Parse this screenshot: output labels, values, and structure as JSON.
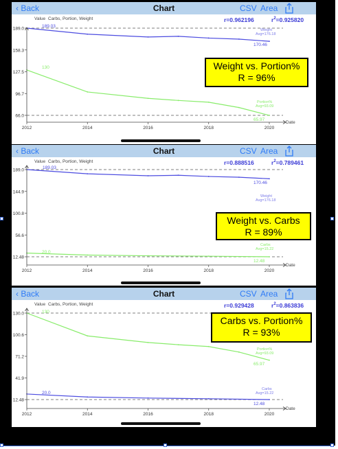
{
  "colors": {
    "weight_line": "#4b4be0",
    "green_line": "#88ec6a",
    "nav_bg": "#b7d2ec",
    "nav_link": "#2f7bf6",
    "stats_text": "#3b3bd6",
    "callout_bg": "#ffff00"
  },
  "icons": {
    "back": "chevron-left-icon",
    "share": "share-icon"
  },
  "panels": [
    {
      "nav": {
        "back_label": "Back",
        "title": "Chart",
        "csv_label": "CSV",
        "area_label": "Area"
      },
      "stats": {
        "r_text": "r=0.962196",
        "r2_prefix": "r",
        "r2_exp": "2",
        "r2_value": "=0.925820"
      },
      "value_label": "Value",
      "series_label": "Carbs, Portion, Weight",
      "date_label": "Date",
      "callout": {
        "line1": "Weight vs. Portion%",
        "line2": "R = 96%"
      },
      "annotations": {
        "top_start": "189.03",
        "top_end": "170.46",
        "top_name": "Weight",
        "top_avg": "Avg=176.18",
        "bottom_start": "130",
        "bottom_end": "65.97",
        "bottom_name": "Portion%",
        "bottom_avg": "Avg=93.09"
      }
    },
    {
      "nav": {
        "back_label": "Back",
        "title": "Chart",
        "csv_label": "CSV",
        "area_label": "Area"
      },
      "stats": {
        "r_text": "r=0.888516",
        "r2_prefix": "r",
        "r2_exp": "2",
        "r2_value": "=0.789461"
      },
      "value_label": "Value",
      "series_label": "Carbs, Portion, Weight",
      "date_label": "Date",
      "callout": {
        "line1": "Weight vs. Carbs",
        "line2": "R = 89%"
      },
      "annotations": {
        "top_start": "189.03",
        "top_end": "170.46",
        "top_name": "Weight",
        "top_avg": "Avg=176.18",
        "bottom_start": "20.0",
        "bottom_end": "12.48",
        "bottom_name": "Carbs",
        "bottom_avg": "Avg=15.22"
      }
    },
    {
      "nav": {
        "back_label": "Back",
        "title": "Chart",
        "csv_label": "CSV",
        "area_label": "Area"
      },
      "stats": {
        "r_text": "r=0.929428",
        "r2_prefix": "r",
        "r2_exp": "2",
        "r2_value": "=0.863836"
      },
      "value_label": "Value",
      "series_label": "Carbs, Portion, Weight",
      "date_label": "Date",
      "callout": {
        "line1": "Carbs vs. Portion%",
        "line2": "R = 93%"
      },
      "annotations": {
        "top_start": "130",
        "top_end": "65.97",
        "top_name": "Portion%",
        "top_avg": "Avg=93.09",
        "bottom_start": "20.0",
        "bottom_end": "12.48",
        "bottom_name": "Carbs",
        "bottom_avg": "Avg=15.22"
      }
    }
  ],
  "chart_data": [
    {
      "type": "line",
      "yticks": [
        "189.0",
        "158.3",
        "127.5",
        "96.7",
        "66.0"
      ],
      "xticks": [
        "2012",
        "2014",
        "2016",
        "2018",
        "2020"
      ],
      "ylim": [
        66.0,
        189.0
      ],
      "xlim": [
        2012,
        2020
      ],
      "hlines": [
        189.0,
        66.0
      ],
      "series": [
        {
          "name": "Weight",
          "color": "#4b4be0",
          "x": [
            2012,
            2014,
            2016,
            2017,
            2018,
            2019,
            2020
          ],
          "values": [
            189.03,
            180.5,
            176.5,
            177.5,
            175.0,
            173.5,
            170.46
          ]
        },
        {
          "name": "Portion%",
          "color": "#88ec6a",
          "x": [
            2012,
            2014,
            2016,
            2017,
            2018,
            2019,
            2020
          ],
          "values": [
            130,
            99,
            90,
            87,
            84.5,
            77,
            65.97
          ]
        }
      ]
    },
    {
      "type": "line",
      "yticks": [
        "189.0",
        "144.9",
        "100.8",
        "56.6",
        "12.48"
      ],
      "xticks": [
        "2012",
        "2014",
        "2016",
        "2018",
        "2020"
      ],
      "ylim": [
        12.48,
        189.0
      ],
      "xlim": [
        2012,
        2020
      ],
      "hlines": [
        189.0,
        12.48
      ],
      "series": [
        {
          "name": "Weight",
          "color": "#4b4be0",
          "x": [
            2012,
            2014,
            2016,
            2017,
            2018,
            2019,
            2020
          ],
          "values": [
            189.03,
            180.5,
            176.5,
            177.5,
            175.0,
            173.5,
            170.46
          ]
        },
        {
          "name": "Carbs",
          "color": "#88ec6a",
          "x": [
            2012,
            2014,
            2016,
            2018,
            2020
          ],
          "values": [
            20.0,
            16.0,
            14.5,
            13.6,
            12.48
          ]
        }
      ]
    },
    {
      "type": "line",
      "yticks": [
        "130.0",
        "100.6",
        "71.2",
        "41.9",
        "12.48"
      ],
      "xticks": [
        "2012",
        "2014",
        "2016",
        "2018",
        "2020"
      ],
      "ylim": [
        12.48,
        130.0
      ],
      "xlim": [
        2012,
        2020
      ],
      "hlines": [
        130.0,
        12.48
      ],
      "series": [
        {
          "name": "Portion%",
          "color": "#88ec6a",
          "x": [
            2012,
            2014,
            2016,
            2017,
            2018,
            2019,
            2020
          ],
          "values": [
            130,
            99,
            90,
            87,
            84.5,
            77,
            65.97
          ]
        },
        {
          "name": "Carbs",
          "color": "#4b4be0",
          "x": [
            2012,
            2014,
            2016,
            2018,
            2020
          ],
          "values": [
            20.0,
            16.0,
            14.5,
            13.6,
            12.48
          ]
        }
      ]
    }
  ]
}
